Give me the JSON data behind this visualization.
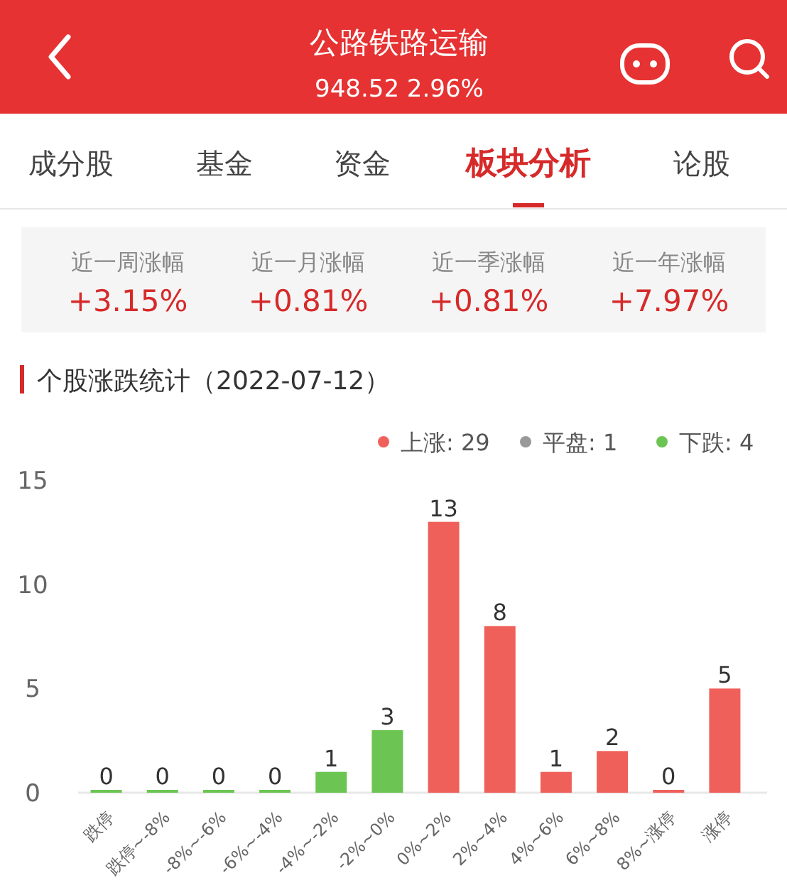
{
  "chart_data": {
    "type": "bar",
    "title": "个股涨跌统计（2022-07-12）",
    "categories": [
      "跌停",
      "跌停~-8%",
      "-8%~-6%",
      "-6%~-4%",
      "-4%~-2%",
      "-2%~0%",
      "0%~2%",
      "2%~4%",
      "4%~6%",
      "6%~8%",
      "8%~涨停",
      "涨停"
    ],
    "values": [
      0,
      0,
      0,
      0,
      1,
      3,
      13,
      8,
      1,
      2,
      0,
      5
    ],
    "colors": [
      "#6cc552",
      "#6cc552",
      "#6cc552",
      "#6cc552",
      "#6cc552",
      "#6cc552",
      "#f0605a",
      "#f0605a",
      "#f0605a",
      "#f0605a",
      "#f0605a",
      "#f0605a"
    ],
    "ylim": [
      0,
      15
    ],
    "yticks": [
      0,
      5,
      10,
      15
    ],
    "data_labels": true,
    "annotations": [
      "公路铁路运输",
      "948.52  2.96%",
      "成分股",
      "基金",
      "资金",
      "板块分析",
      "论股",
      "近一周涨幅",
      "+3.15%",
      "近一月涨幅",
      "+0.81%",
      "近一季涨幅",
      "+0.81%",
      "近一年涨幅",
      "+7.97%",
      "上涨: 29",
      "平盘: 1",
      "下跌: 4"
    ]
  }
}
